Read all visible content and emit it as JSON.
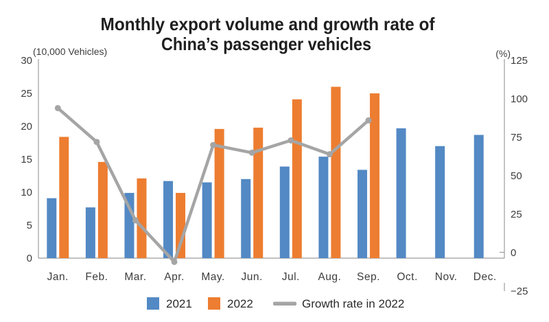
{
  "title": {
    "line1": "Monthly export volume and growth rate of",
    "line2": "China’s passenger vehicles"
  },
  "axes": {
    "left_unit": "(10,000 Vehicles)",
    "right_unit": "(%)",
    "left_ticks": [
      0,
      5,
      10,
      15,
      20,
      25,
      30
    ],
    "right_ticks": [
      125,
      100,
      75,
      50,
      25,
      0,
      -25
    ],
    "right_negative_color": "#e0301e",
    "tick_color": "#3d3d3d",
    "axis_line_color": "#9c9c9c"
  },
  "legend": [
    {
      "label": "2021",
      "swatch": "square",
      "color": "#5389c4"
    },
    {
      "label": "2022",
      "swatch": "square",
      "color": "#ed7d31"
    },
    {
      "label": "Growth rate in 2022",
      "swatch": "line",
      "color": "#a5a5a5"
    }
  ],
  "chart_data": {
    "type": "bar+line combo",
    "title": "Monthly export volume and growth rate of China’s passenger vehicles",
    "categories": [
      "Jan.",
      "Feb.",
      "Mar.",
      "Apr.",
      "May.",
      "Jun.",
      "Jul.",
      "Aug.",
      "Sep.",
      "Oct.",
      "Nov.",
      "Dec."
    ],
    "series": [
      {
        "name": "2021",
        "type": "bar",
        "axis": "left",
        "color": "#5389c4",
        "values": [
          9.1,
          7.7,
          9.9,
          11.7,
          11.5,
          12.0,
          13.9,
          15.4,
          13.4,
          19.7,
          17.0,
          18.7
        ]
      },
      {
        "name": "2022",
        "type": "bar",
        "axis": "left",
        "color": "#ed7d31",
        "values": [
          18.4,
          14.6,
          12.1,
          9.9,
          19.6,
          19.8,
          24.1,
          26.0,
          25.0,
          null,
          null,
          null
        ]
      },
      {
        "name": "Growth rate in 2022",
        "type": "line",
        "axis": "right",
        "color": "#a5a5a5",
        "marker": "circle",
        "values": [
          94,
          72,
          21,
          -6,
          70,
          65,
          73,
          64,
          86,
          null,
          null,
          null
        ]
      }
    ],
    "left_axis": {
      "label": "(10,000 Vehicles)",
      "min": 0,
      "max": 30,
      "step": 5
    },
    "right_axis": {
      "label": "(%)",
      "min": -25,
      "max": 125,
      "step": 25
    },
    "grid": false,
    "legend_position": "bottom"
  }
}
